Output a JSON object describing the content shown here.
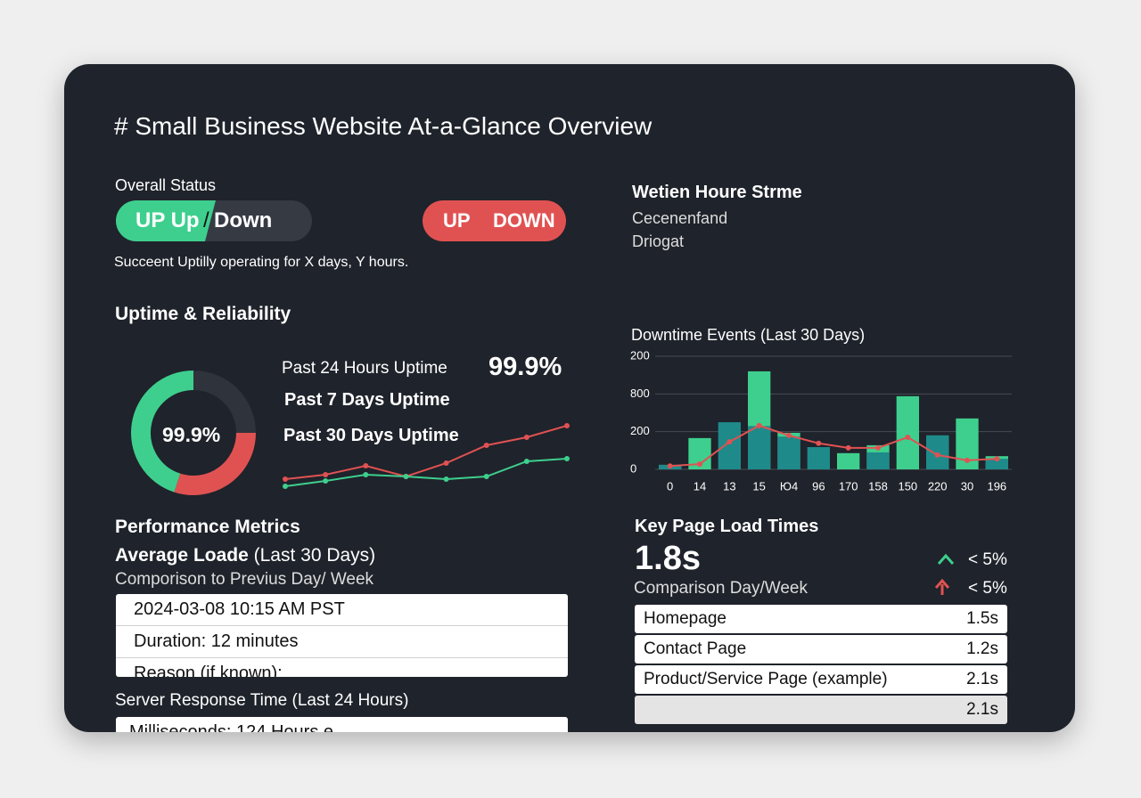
{
  "header": {
    "title": "# Small Business Website At-a-Glance Overview"
  },
  "status": {
    "label": "Overall Status",
    "toggle": [
      "UP Up",
      "/",
      "Down"
    ],
    "badge": [
      "UP",
      "DOWN"
    ],
    "note": "Succeent Uptilly operating for X days, Y hours."
  },
  "side": {
    "title": "Wetien Houre Strme",
    "lines": [
      "Cecenenfand",
      "Driogat"
    ]
  },
  "uptime": {
    "title": "Uptime & Reliability",
    "center": "99.9%",
    "donut": [
      {
        "color": "#2e333c",
        "value": 25
      },
      {
        "color": "#e05252",
        "value": 30
      },
      {
        "color": "#3ecf8e",
        "value": 45
      }
    ],
    "rows": [
      "Past 24 Hours Uptime",
      "Past 7 Days Uptime",
      "Past 30 Days Uptime"
    ],
    "value": "99.9%",
    "trend": {
      "type": "line",
      "ylim": [
        0,
        100
      ],
      "series": [
        {
          "color": "#e05252",
          "values": [
            22,
            27,
            37,
            25,
            40,
            60,
            69,
            82
          ]
        },
        {
          "color": "#3ecf8e",
          "values": [
            14,
            20,
            27,
            25,
            22,
            25,
            42,
            45
          ]
        }
      ]
    }
  },
  "chart_data": {
    "type": "bar",
    "title": "Downtime Events (Last 30 Days)",
    "categories": [
      "0",
      "14",
      "13",
      "15",
      "Ю4",
      "96",
      "170",
      "158",
      "150",
      "220",
      "30",
      "196"
    ],
    "ylim": [
      0,
      300
    ],
    "yticks": [
      0,
      {
        "value": 100,
        "label": "200"
      },
      {
        "value": 200,
        "label": "800"
      },
      {
        "value": 300,
        "label": "200"
      }
    ],
    "grid": true,
    "series": [
      {
        "type": "bar",
        "color": "#3ecf8e",
        "values": [
          12,
          83,
          0,
          260,
          97,
          0,
          43,
          64,
          194,
          90,
          135,
          35
        ]
      },
      {
        "type": "bar",
        "color": "#1f8a8a",
        "values": [
          12,
          0,
          125,
          115,
          87,
          59,
          0,
          45,
          0,
          90,
          0,
          28
        ]
      },
      {
        "type": "line",
        "color": "#e05252",
        "values": [
          9,
          14,
          73,
          116,
          90,
          69,
          57,
          57,
          85,
          38,
          24,
          28
        ]
      }
    ]
  },
  "performance": {
    "title": "Performance Metrics",
    "subtitle_bold": "Average Loade",
    "subtitle": "(Last 30 Days)",
    "comparison": "Comporison to Previus Day/ Week",
    "rows": [
      "2024-03-08 10:15 AM PST",
      "Duration: 12 minutes",
      "Reason (if known):"
    ],
    "server": "Server Response Time (Last 24 Hours)",
    "server_row": "Milliseconds: 124 Hours e"
  },
  "load": {
    "title": "Key Page Load Times",
    "value": "1.8s",
    "comparison": "Comparison Day/Week",
    "changes": [
      "< 5%",
      "< 5%"
    ],
    "rows": [
      {
        "page": "Homepage",
        "value": "1.5s"
      },
      {
        "page": "Contact Page",
        "value": "1.2s"
      },
      {
        "page": "Product/Service Page (example)",
        "value": "2.1s"
      },
      {
        "value": "2.1s"
      }
    ]
  }
}
